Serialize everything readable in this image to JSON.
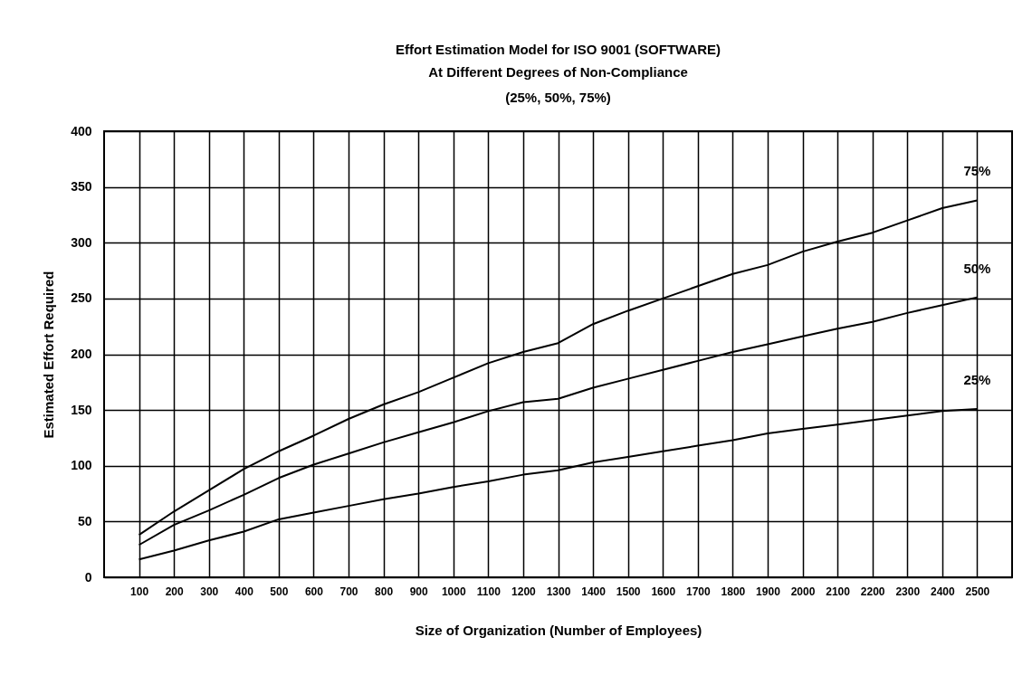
{
  "chart_data": {
    "type": "line",
    "title": "Effort Estimation Model for ISO 9001 (SOFTWARE)",
    "subtitle": "At Different Degrees of Non-Compliance\n(25%, 50%, 75%)",
    "xlabel": "Size of Organization (Number of Employees)",
    "ylabel": "Estimated Effort Required",
    "x": [
      100,
      200,
      300,
      400,
      500,
      600,
      700,
      800,
      900,
      1000,
      1100,
      1200,
      1300,
      1400,
      1500,
      1600,
      1700,
      1800,
      1900,
      2000,
      2100,
      2200,
      2300,
      2400,
      2500
    ],
    "series": [
      {
        "name": "75%",
        "color": "#000000",
        "values": [
          38,
          59,
          78,
          97,
          113,
          127,
          142,
          155,
          166,
          179,
          192,
          202,
          210,
          227,
          239,
          250,
          261,
          272,
          280,
          292,
          301,
          309,
          320,
          331,
          338
        ]
      },
      {
        "name": "50%",
        "color": "#000000",
        "values": [
          29,
          47,
          60,
          74,
          89,
          101,
          111,
          121,
          130,
          139,
          149,
          157,
          160,
          170,
          178,
          186,
          194,
          202,
          209,
          216,
          223,
          229,
          237,
          244,
          251
        ]
      },
      {
        "name": "25%",
        "color": "#000000",
        "values": [
          16,
          24,
          33,
          41,
          52,
          58,
          64,
          70,
          75,
          81,
          86,
          92,
          96,
          103,
          108,
          113,
          118,
          123,
          129,
          133,
          137,
          141,
          145,
          149,
          151
        ]
      }
    ],
    "xlim": [
      0,
      2600
    ],
    "xticks": [
      100,
      200,
      300,
      400,
      500,
      600,
      700,
      800,
      900,
      1000,
      1100,
      1200,
      1300,
      1400,
      1500,
      1600,
      1700,
      1800,
      1900,
      2000,
      2100,
      2200,
      2300,
      2400,
      2500
    ],
    "ylim": [
      0,
      400
    ],
    "yticks": [
      0,
      50,
      100,
      150,
      200,
      250,
      300,
      350,
      400
    ],
    "grid": true,
    "legend": false,
    "marker": "none",
    "line_style": "solid"
  }
}
